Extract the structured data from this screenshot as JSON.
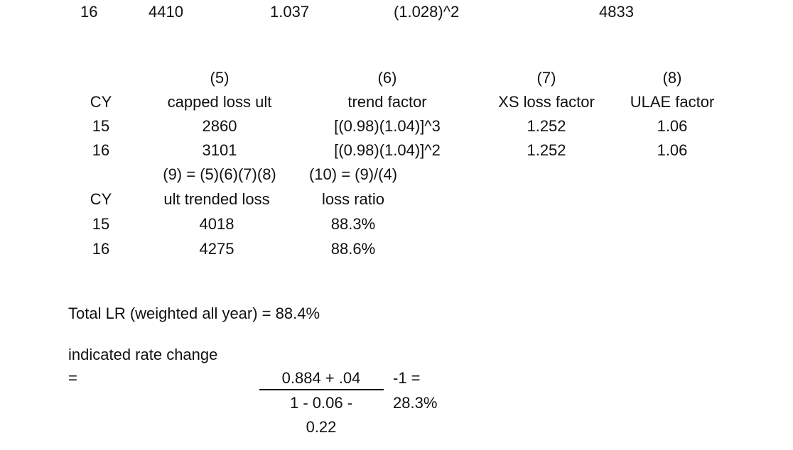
{
  "top_row": {
    "cy": "16",
    "a": "4410",
    "b": "1.037",
    "c": "(1.028)^2",
    "d": "4833"
  },
  "table1": {
    "cols": [
      "(5)",
      "(6)",
      "(7)",
      "(8)"
    ],
    "headers": [
      "CY",
      "capped loss ult",
      "trend factor",
      "XS loss factor",
      "ULAE factor"
    ],
    "rows": [
      [
        "15",
        "2860",
        "[(0.98)(1.04)]^3",
        "1.252",
        "1.06"
      ],
      [
        "16",
        "3101",
        "[(0.98)(1.04)]^2",
        "1.252",
        "1.06"
      ]
    ]
  },
  "table2": {
    "cols": [
      "(9) = (5)(6)(7)(8)",
      "(10) = (9)/(4)"
    ],
    "headers": [
      "CY",
      "ult trended loss",
      "loss ratio"
    ],
    "rows": [
      [
        "15",
        "4018",
        "88.3%"
      ],
      [
        "16",
        "4275",
        "88.6%"
      ]
    ]
  },
  "total_lr": "Total LR (weighted all year) = 88.4%",
  "rate_change": {
    "label": "indicated rate change",
    "eq": "=",
    "numerator": "0.884 + .04",
    "denominator_1": "1 - 0.06 -",
    "denominator_2": "0.22",
    "minus_one": "-1 =",
    "result": "28.3%"
  }
}
